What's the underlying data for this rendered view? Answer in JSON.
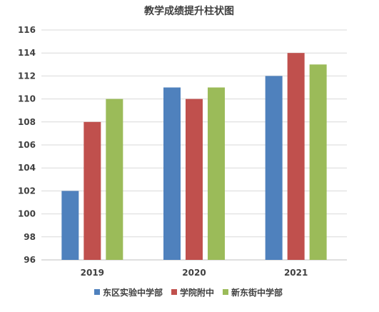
{
  "chart_data": {
    "type": "bar",
    "title": "教学成绩提升柱状图",
    "xlabel": "",
    "ylabel": "",
    "categories": [
      "2019",
      "2020",
      "2021"
    ],
    "series": [
      {
        "name": "东区实验中学部",
        "values": [
          102,
          111,
          112
        ],
        "color": "#4f81bd"
      },
      {
        "name": "学院附中",
        "values": [
          108,
          110,
          114
        ],
        "color": "#c0504d"
      },
      {
        "name": "新东街中学部",
        "values": [
          110,
          111,
          113
        ],
        "color": "#9bbb59"
      }
    ],
    "ylim": [
      96,
      116
    ],
    "yticks": [
      96,
      98,
      100,
      102,
      104,
      106,
      108,
      110,
      112,
      114,
      116
    ],
    "grid": true,
    "legend_position": "bottom"
  }
}
